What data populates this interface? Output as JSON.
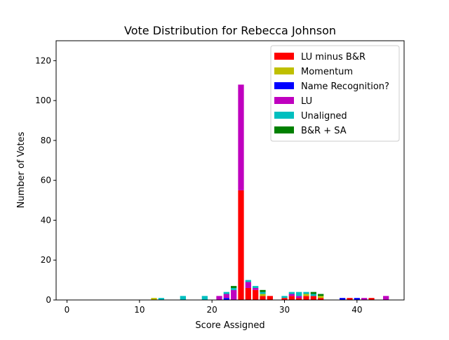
{
  "chart_data": {
    "type": "bar",
    "stacked": true,
    "title": "Vote Distribution for Rebecca Johnson",
    "xlabel": "Score Assigned",
    "ylabel": "Number of Votes",
    "xlim": [
      -1.5,
      46.5
    ],
    "ylim": [
      0,
      130
    ],
    "xticks": [
      0,
      10,
      20,
      30,
      40
    ],
    "yticks": [
      0,
      20,
      40,
      60,
      80,
      100,
      120
    ],
    "grid": false,
    "legend_position": "top-right",
    "series": [
      {
        "name": "LU minus B&R",
        "color": "#ff0000",
        "points": [
          [
            24,
            55
          ],
          [
            25,
            6
          ],
          [
            26,
            5
          ],
          [
            27,
            2
          ],
          [
            28,
            2
          ],
          [
            30,
            1
          ],
          [
            31,
            2
          ],
          [
            32,
            1
          ],
          [
            33,
            2
          ],
          [
            34,
            2
          ],
          [
            35,
            1
          ],
          [
            39,
            1
          ],
          [
            42,
            1
          ]
        ]
      },
      {
        "name": "Momentum",
        "color": "#bfbf00",
        "points": [
          [
            12,
            1
          ],
          [
            27,
            1
          ],
          [
            33,
            1
          ],
          [
            35,
            1
          ]
        ]
      },
      {
        "name": "Name Recognition?",
        "color": "#0000ff",
        "points": [
          [
            22,
            1
          ],
          [
            38,
            1
          ],
          [
            40,
            1
          ]
        ]
      },
      {
        "name": "LU",
        "color": "#bf00bf",
        "points": [
          [
            21,
            2
          ],
          [
            22,
            2
          ],
          [
            23,
            5
          ],
          [
            24,
            53
          ],
          [
            25,
            3
          ],
          [
            26,
            1
          ],
          [
            31,
            1
          ],
          [
            32,
            1
          ],
          [
            41,
            1
          ],
          [
            44,
            2
          ]
        ]
      },
      {
        "name": "Unaligned",
        "color": "#00bfbf",
        "points": [
          [
            13,
            1
          ],
          [
            16,
            2
          ],
          [
            19,
            2
          ],
          [
            22,
            1
          ],
          [
            23,
            1
          ],
          [
            25,
            1
          ],
          [
            26,
            1
          ],
          [
            27,
            1
          ],
          [
            30,
            1
          ],
          [
            31,
            1
          ],
          [
            32,
            2
          ],
          [
            33,
            1
          ],
          [
            34,
            1
          ]
        ]
      },
      {
        "name": "B&R + SA",
        "color": "#008000",
        "points": [
          [
            23,
            1
          ],
          [
            24,
            0
          ],
          [
            27,
            1
          ],
          [
            34,
            1
          ],
          [
            35,
            1
          ]
        ]
      }
    ]
  }
}
